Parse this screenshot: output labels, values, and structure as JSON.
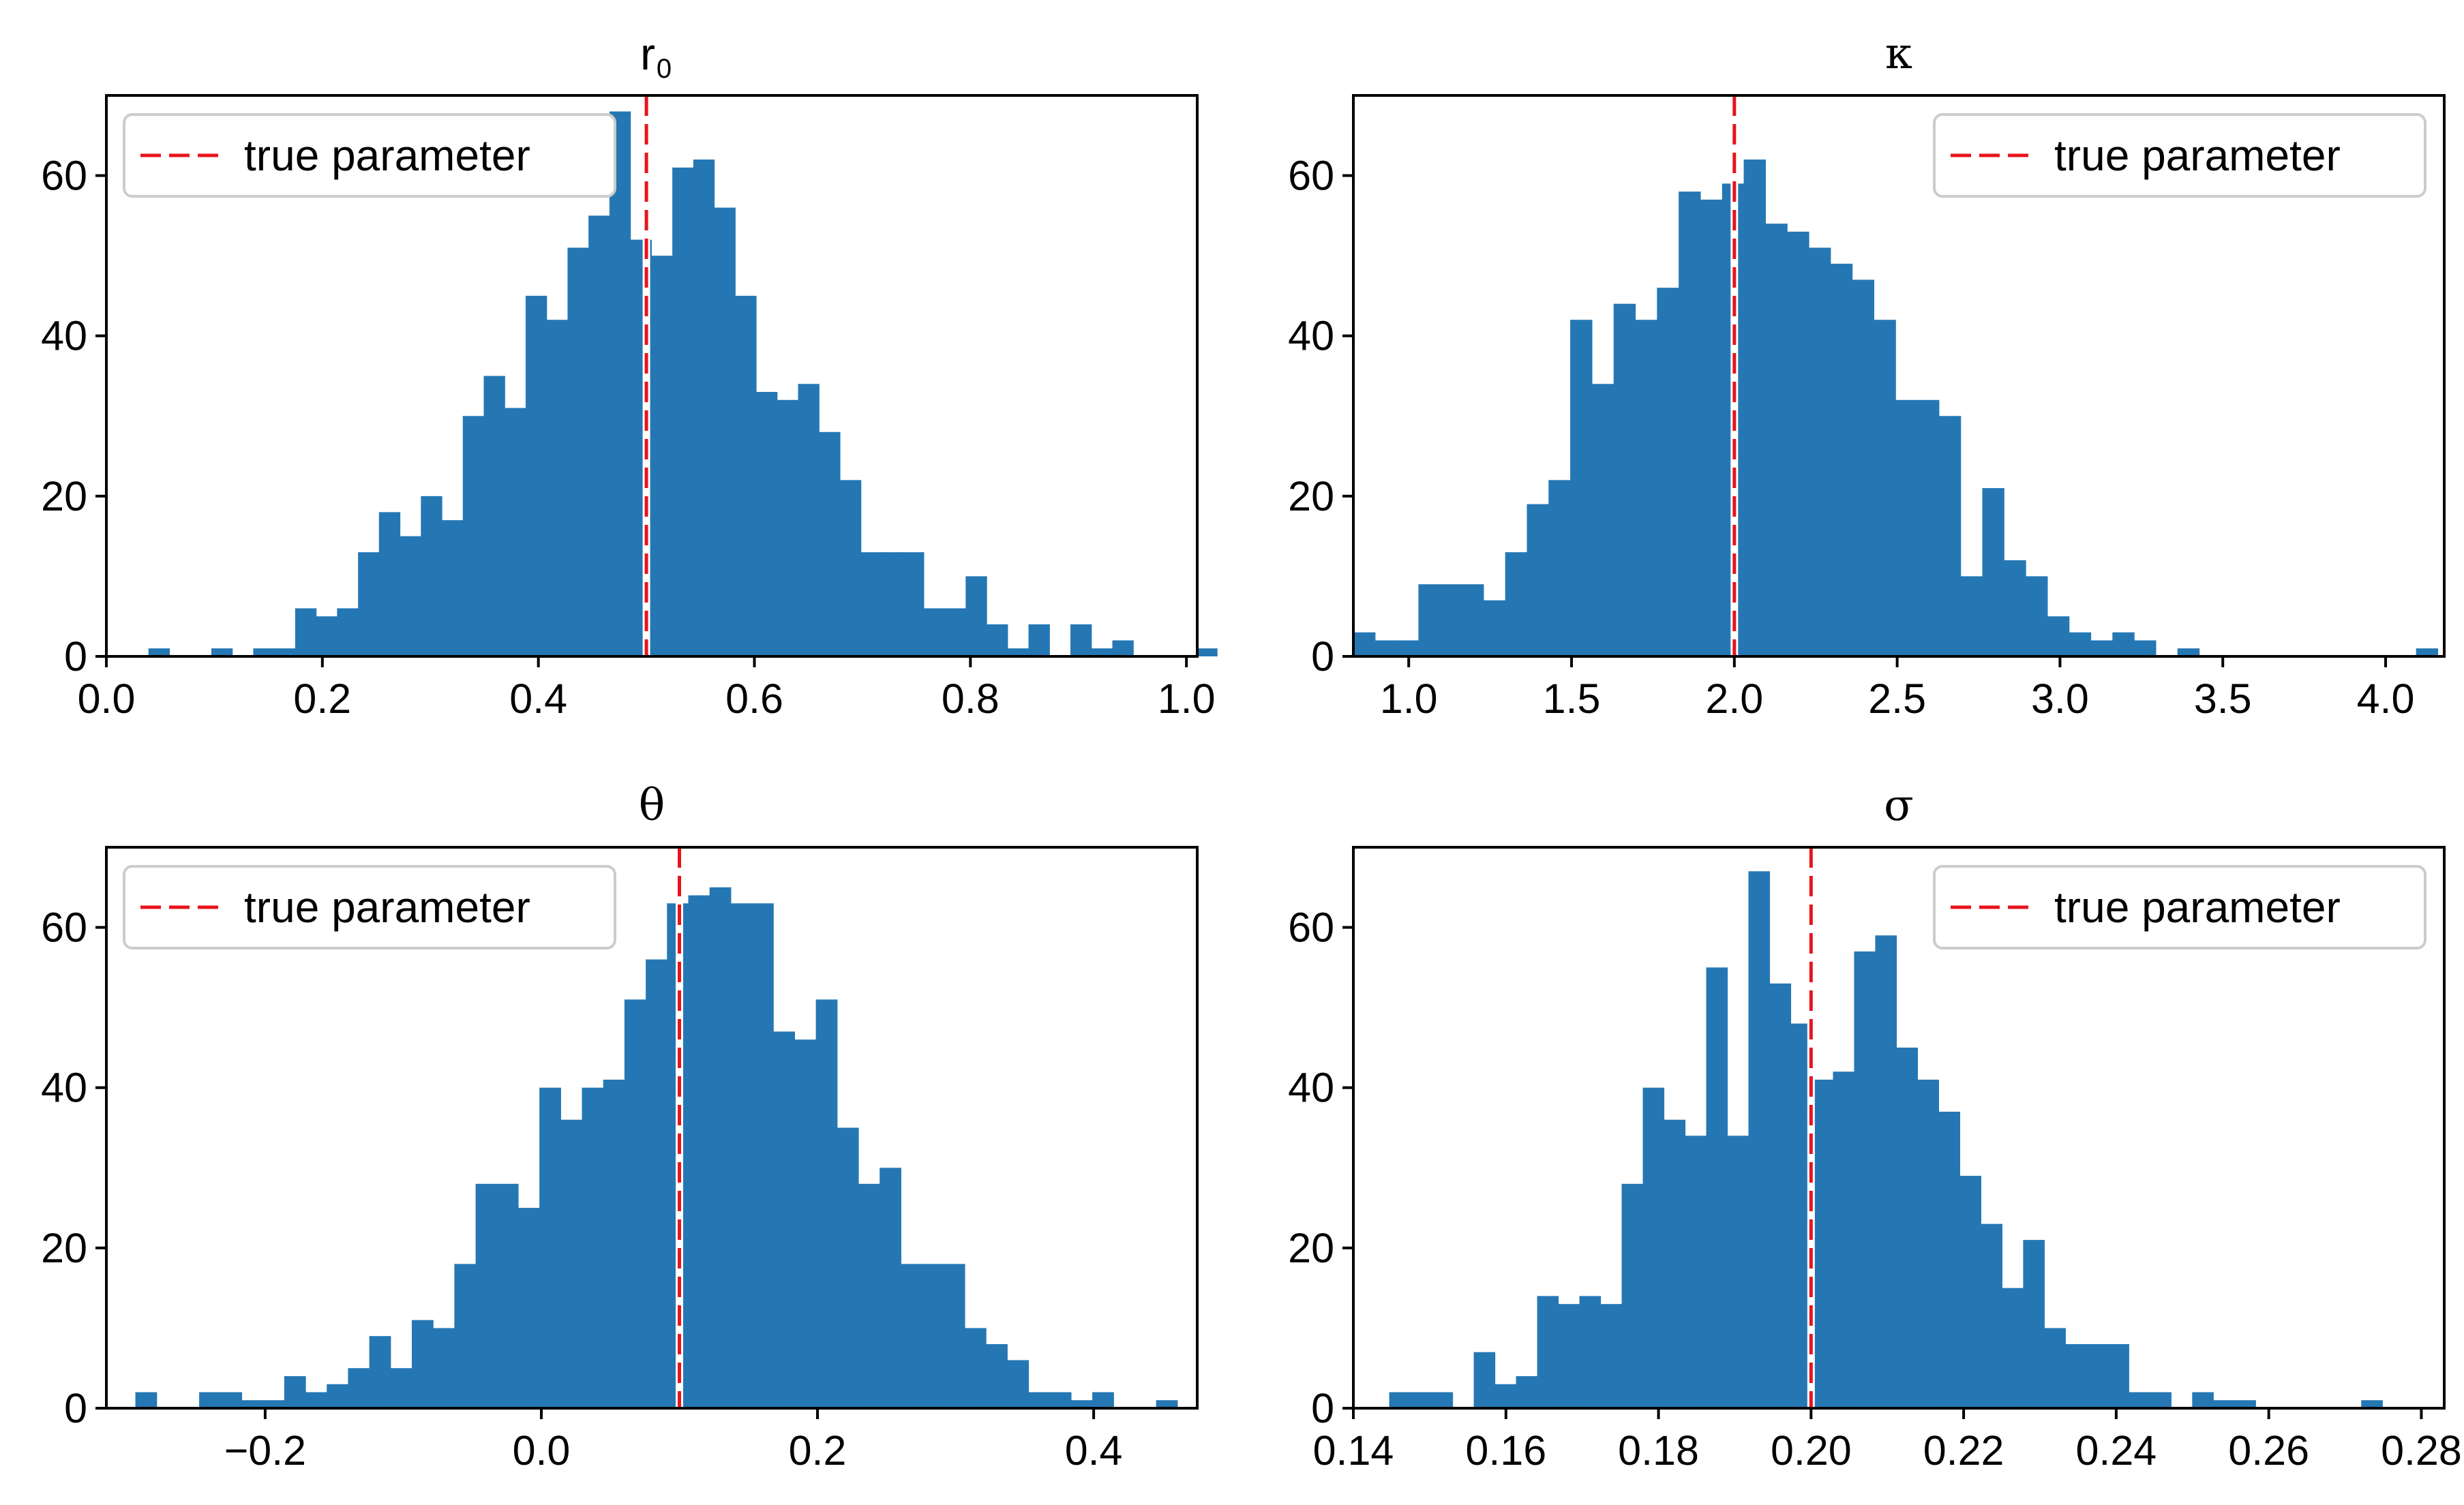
{
  "colors": {
    "bar": "#2577b4",
    "true_line": "#e8141d",
    "axis": "#000000",
    "legend_edge": "#cccccc",
    "background": "#ffffff"
  },
  "chart_data": [
    {
      "type": "bar",
      "title": "r",
      "title_subscript": "0",
      "xlim": [
        0.0,
        1.01
      ],
      "ylim": [
        0,
        70
      ],
      "xticks": [
        0.0,
        0.2,
        0.4,
        0.6,
        0.8,
        1.0
      ],
      "xtick_labels": [
        "0.0",
        "0.2",
        "0.4",
        "0.6",
        "0.8",
        "1.0"
      ],
      "yticks": [
        0,
        20,
        40,
        60
      ],
      "ytick_labels": [
        "0",
        "20",
        "40",
        "60"
      ],
      "bin_start": 0.039,
      "bin_width": 0.0194,
      "counts": [
        1,
        0,
        0,
        1,
        0,
        1,
        1,
        6,
        5,
        6,
        13,
        18,
        15,
        20,
        17,
        30,
        35,
        31,
        45,
        42,
        51,
        55,
        68,
        52,
        50,
        61,
        62,
        56,
        45,
        33,
        32,
        34,
        28,
        22,
        13,
        13,
        13,
        6,
        6,
        10,
        4,
        1,
        4,
        0,
        4,
        1,
        2,
        0,
        0,
        0,
        1
      ],
      "true_value": 0.5,
      "legend_label": "true parameter",
      "legend_loc": "upper left"
    },
    {
      "type": "bar",
      "title": "κ",
      "title_subscript": "",
      "xlim": [
        0.83,
        4.18
      ],
      "ylim": [
        0,
        70
      ],
      "xticks": [
        1.0,
        1.5,
        2.0,
        2.5,
        3.0,
        3.5,
        4.0
      ],
      "xtick_labels": [
        "1.0",
        "1.5",
        "2.0",
        "2.5",
        "3.0",
        "3.5",
        "4.0"
      ],
      "yticks": [
        0,
        20,
        40,
        60
      ],
      "ytick_labels": [
        "0",
        "20",
        "40",
        "60"
      ],
      "bin_start": 0.83,
      "bin_width": 0.0666,
      "counts": [
        3,
        2,
        2,
        9,
        9,
        9,
        7,
        13,
        19,
        22,
        42,
        34,
        44,
        42,
        46,
        58,
        57,
        59,
        62,
        54,
        53,
        51,
        49,
        47,
        42,
        32,
        32,
        30,
        10,
        21,
        12,
        10,
        5,
        3,
        2,
        3,
        2,
        0,
        1,
        0,
        0,
        0,
        0,
        0,
        0,
        0,
        0,
        0,
        0,
        1
      ],
      "true_value": 2.0,
      "legend_label": "true parameter",
      "legend_loc": "upper right"
    },
    {
      "type": "bar",
      "title": "θ",
      "title_subscript": "",
      "xlim": [
        -0.315,
        0.475
      ],
      "ylim": [
        0,
        70
      ],
      "xticks": [
        -0.2,
        0.0,
        0.2,
        0.4
      ],
      "xtick_labels": [
        "−0.2",
        "0.0",
        "0.2",
        "0.4"
      ],
      "yticks": [
        0,
        20,
        40,
        60
      ],
      "ytick_labels": [
        "0",
        "20",
        "40",
        "60"
      ],
      "bin_start": -0.294,
      "bin_width": 0.0154,
      "counts": [
        2,
        0,
        0,
        2,
        2,
        1,
        1,
        4,
        2,
        3,
        5,
        9,
        5,
        11,
        10,
        18,
        28,
        28,
        25,
        40,
        36,
        40,
        41,
        51,
        56,
        63,
        64,
        65,
        63,
        63,
        47,
        46,
        51,
        35,
        28,
        30,
        18,
        18,
        18,
        10,
        8,
        6,
        2,
        2,
        1,
        2,
        0,
        0,
        1
      ],
      "true_value": 0.1,
      "legend_label": "true parameter",
      "legend_loc": "upper left"
    },
    {
      "type": "bar",
      "title": "σ",
      "title_subscript": "",
      "xlim": [
        0.14,
        0.283
      ],
      "ylim": [
        0,
        70
      ],
      "xticks": [
        0.14,
        0.16,
        0.18,
        0.2,
        0.22,
        0.24,
        0.26,
        0.28
      ],
      "xtick_labels": [
        "0.14",
        "0.16",
        "0.18",
        "0.20",
        "0.22",
        "0.24",
        "0.26",
        "0.28"
      ],
      "yticks": [
        0,
        20,
        40,
        60
      ],
      "ytick_labels": [
        "0",
        "20",
        "40",
        "60"
      ],
      "bin_start": 0.1447,
      "bin_width": 0.00277,
      "counts": [
        2,
        2,
        2,
        0,
        7,
        3,
        4,
        14,
        13,
        14,
        13,
        28,
        40,
        36,
        34,
        55,
        34,
        67,
        53,
        48,
        41,
        42,
        57,
        59,
        45,
        41,
        37,
        29,
        23,
        15,
        21,
        10,
        8,
        8,
        8,
        2,
        2,
        0,
        2,
        1,
        1,
        0,
        0,
        0,
        0,
        0,
        1
      ],
      "true_value": 0.2,
      "legend_label": "true parameter",
      "legend_loc": "upper right"
    }
  ]
}
